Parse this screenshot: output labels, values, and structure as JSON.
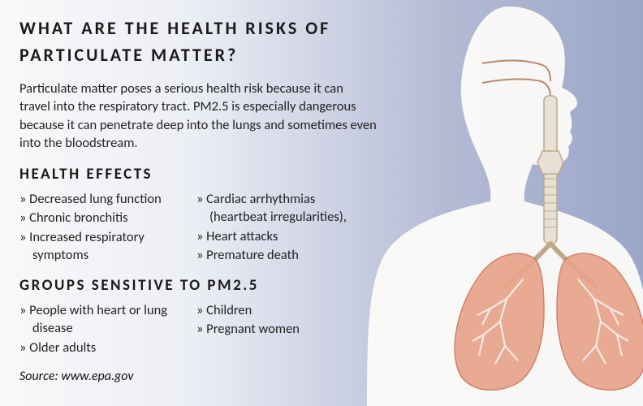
{
  "title": "WHAT ARE THE HEALTH RISKS OF PARTICULATE MATTER?",
  "intro": "Particulate matter poses a serious health risk because it can travel into the respiratory tract. PM2.5 is especially dangerous because it can penetrate deep into the lungs and sometimes even into the bloodstream.",
  "sections": {
    "health_effects": {
      "title": "HEALTH EFFECTS",
      "col1": [
        "Decreased lung function",
        "Chronic bronchitis",
        "Increased respiratory symptoms"
      ],
      "col2": [
        "Cardiac arrhythmias (heartbeat irregularities),",
        "Heart attacks",
        "Premature death"
      ]
    },
    "sensitive_groups": {
      "title": "GROUPS SENSITIVE TO PM2.5",
      "col1": [
        "People with heart or lung disease",
        "Older adults"
      ],
      "col2": [
        "Children",
        "Pregnant women"
      ]
    }
  },
  "source_label": "Source: www.epa.gov",
  "bullet_glyph": "»",
  "colors": {
    "text": "#1a1a1a",
    "body_silhouette": "#fcfbf8",
    "lung_fill": "#e8a48c",
    "lung_stroke": "#c97a5e",
    "airway_stroke": "#b8886e",
    "trachea_fill": "#e8e0d4",
    "trachea_stroke": "#bca98a"
  },
  "figure": {
    "type": "infographic",
    "description": "human-upper-body-silhouette-with-lungs-and-airway",
    "silhouette_opacity": 0.95,
    "lung_opacity": 0.92
  }
}
